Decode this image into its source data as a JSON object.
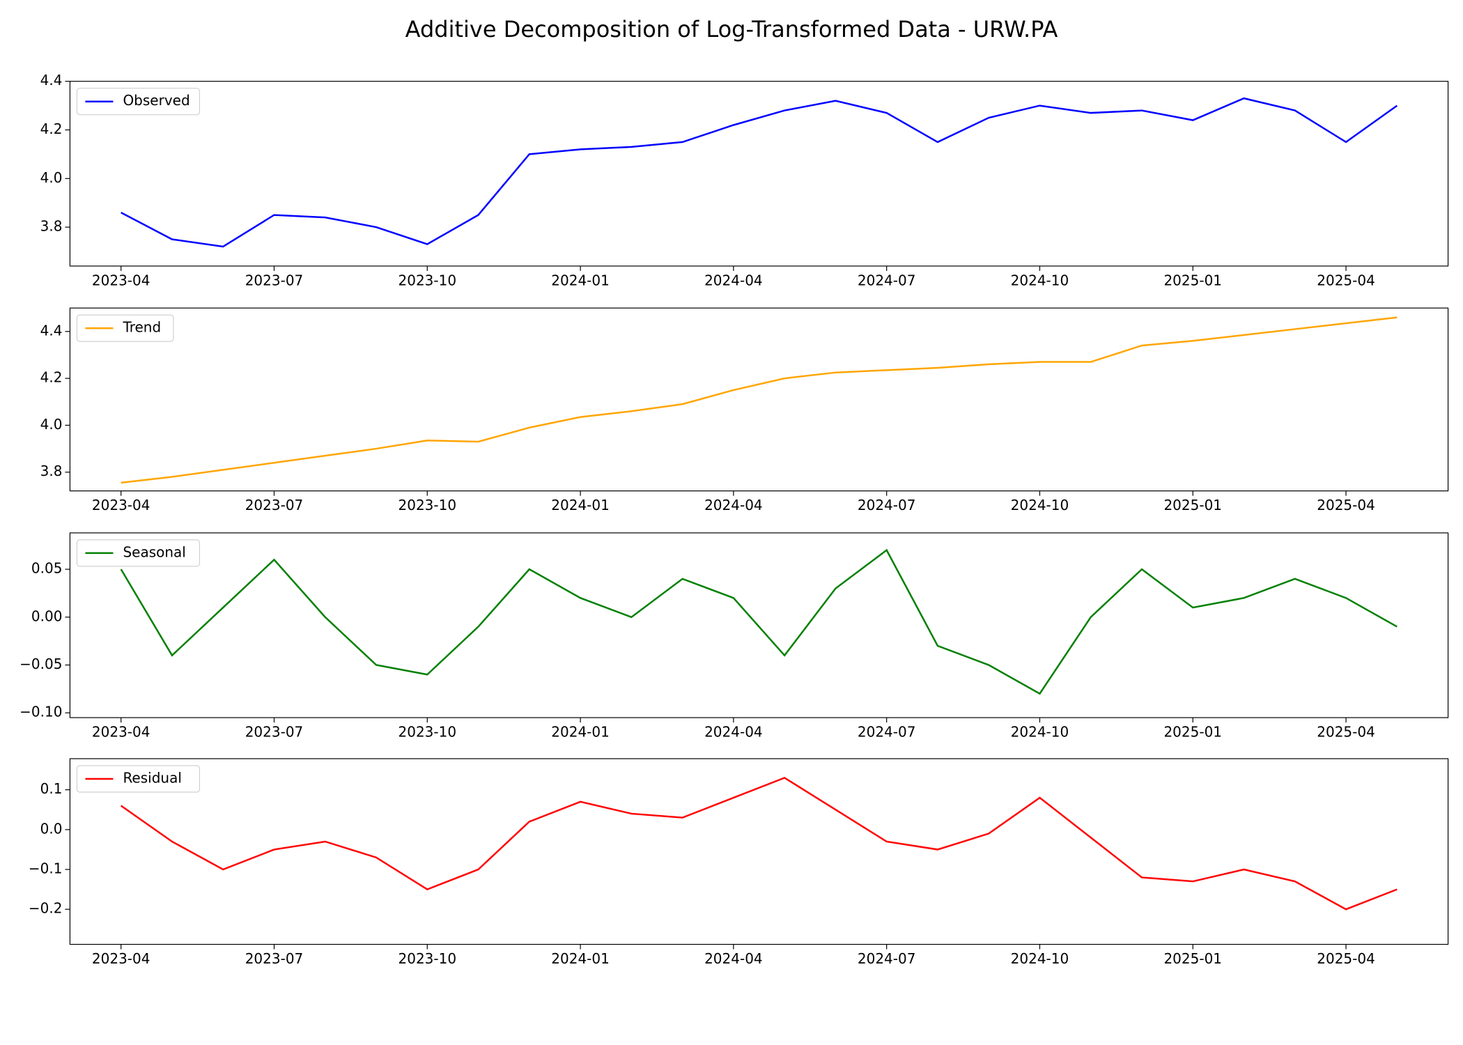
{
  "title": "Additive Decomposition of Log-Transformed Data - URW.PA",
  "chart_data": [
    {
      "type": "line",
      "x": [
        "2023-04",
        "2023-05",
        "2023-06",
        "2023-07",
        "2023-08",
        "2023-09",
        "2023-10",
        "2023-11",
        "2023-12",
        "2024-01",
        "2024-02",
        "2024-03",
        "2024-04",
        "2024-05",
        "2024-06",
        "2024-07",
        "2024-08",
        "2024-09",
        "2024-10",
        "2024-11",
        "2024-12",
        "2025-01",
        "2025-02",
        "2025-03",
        "2025-04",
        "2025-05"
      ],
      "series": [
        {
          "name": "Observed",
          "color": "blue",
          "values": [
            3.86,
            3.75,
            3.72,
            3.85,
            3.84,
            3.8,
            3.73,
            3.85,
            4.1,
            4.12,
            4.13,
            4.15,
            4.22,
            4.28,
            4.32,
            4.27,
            4.15,
            4.25,
            4.3,
            4.27,
            4.28,
            4.24,
            4.33,
            4.28,
            4.15,
            4.3
          ]
        }
      ],
      "xlim": [
        "2023-03",
        "2025-06"
      ],
      "xticks": [
        "2023-04",
        "2023-07",
        "2023-10",
        "2024-01",
        "2024-04",
        "2024-07",
        "2024-10",
        "2025-01",
        "2025-04"
      ],
      "ylim": [
        3.64,
        4.4
      ],
      "yticks": [
        3.8,
        {
          "value": 4,
          "label": "4.0"
        },
        4.2,
        4.4
      ],
      "legend": "upper left"
    },
    {
      "type": "line",
      "x": [
        "2023-04",
        "2023-05",
        "2023-06",
        "2023-07",
        "2023-08",
        "2023-09",
        "2023-10",
        "2023-11",
        "2023-12",
        "2024-01",
        "2024-02",
        "2024-03",
        "2024-04",
        "2024-05",
        "2024-06",
        "2024-07",
        "2024-08",
        "2024-09",
        "2024-10",
        "2024-11",
        "2024-12",
        "2025-01",
        "2025-02",
        "2025-03",
        "2025-04",
        "2025-05"
      ],
      "series": [
        {
          "name": "Trend",
          "color": "orange",
          "values": [
            3.755,
            3.78,
            3.81,
            3.84,
            3.87,
            3.9,
            3.935,
            3.93,
            3.99,
            4.035,
            4.06,
            4.09,
            4.15,
            4.2,
            4.225,
            4.235,
            4.245,
            4.26,
            4.27,
            4.27,
            4.34,
            4.36,
            4.385,
            4.41,
            4.435,
            4.46
          ]
        }
      ],
      "xlim": [
        "2023-03",
        "2025-06"
      ],
      "xticks": [
        "2023-04",
        "2023-07",
        "2023-10",
        "2024-01",
        "2024-04",
        "2024-07",
        "2024-10",
        "2025-01",
        "2025-04"
      ],
      "ylim": [
        3.72,
        4.5
      ],
      "yticks": [
        3.8,
        {
          "value": 4,
          "label": "4.0"
        },
        4.2,
        4.4
      ],
      "legend": "upper left"
    },
    {
      "type": "line",
      "x": [
        "2023-04",
        "2023-05",
        "2023-06",
        "2023-07",
        "2023-08",
        "2023-09",
        "2023-10",
        "2023-11",
        "2023-12",
        "2024-01",
        "2024-02",
        "2024-03",
        "2024-04",
        "2024-05",
        "2024-06",
        "2024-07",
        "2024-08",
        "2024-09",
        "2024-10",
        "2024-11",
        "2024-12",
        "2025-01",
        "2025-02",
        "2025-03",
        "2025-04",
        "2025-05"
      ],
      "series": [
        {
          "name": "Seasonal",
          "color": "green",
          "values": [
            0.05,
            -0.04,
            0.01,
            0.06,
            0.0,
            -0.05,
            -0.06,
            -0.01,
            0.05,
            0.02,
            0.0,
            0.04,
            0.02,
            -0.04,
            0.03,
            0.07,
            -0.03,
            -0.05,
            -0.08,
            0.0,
            0.05,
            0.01,
            0.02,
            0.04,
            0.02,
            -0.01
          ]
        }
      ],
      "xlim": [
        "2023-03",
        "2025-06"
      ],
      "xticks": [
        "2023-04",
        "2023-07",
        "2023-10",
        "2024-01",
        "2024-04",
        "2024-07",
        "2024-10",
        "2025-01",
        "2025-04"
      ],
      "ylim": [
        -0.105,
        0.088
      ],
      "yticks": [
        {
          "value": -0.1,
          "label": "−0.10"
        },
        {
          "value": -0.05,
          "label": "−0.05"
        },
        {
          "value": 0,
          "label": "0.00"
        },
        0.05
      ],
      "legend": "upper left"
    },
    {
      "type": "line",
      "x": [
        "2023-04",
        "2023-05",
        "2023-06",
        "2023-07",
        "2023-08",
        "2023-09",
        "2023-10",
        "2023-11",
        "2023-12",
        "2024-01",
        "2024-02",
        "2024-03",
        "2024-04",
        "2024-05",
        "2024-06",
        "2024-07",
        "2024-08",
        "2024-09",
        "2024-10",
        "2024-11",
        "2024-12",
        "2025-01",
        "2025-02",
        "2025-03",
        "2025-04",
        "2025-05"
      ],
      "series": [
        {
          "name": "Residual",
          "color": "red",
          "values": [
            0.06,
            -0.03,
            -0.1,
            -0.05,
            -0.03,
            -0.07,
            -0.15,
            -0.1,
            0.02,
            0.07,
            0.04,
            0.03,
            0.08,
            0.13,
            0.05,
            -0.03,
            -0.05,
            -0.01,
            0.08,
            -0.02,
            -0.12,
            -0.13,
            -0.1,
            -0.13,
            -0.2,
            -0.15
          ]
        }
      ],
      "xlim": [
        "2023-03",
        "2025-06"
      ],
      "xticks": [
        "2023-04",
        "2023-07",
        "2023-10",
        "2024-01",
        "2024-04",
        "2024-07",
        "2024-10",
        "2025-01",
        "2025-04"
      ],
      "ylim": [
        -0.288,
        0.178
      ],
      "yticks": [
        {
          "value": -0.2,
          "label": "−0.2"
        },
        {
          "value": -0.1,
          "label": "−0.1"
        },
        {
          "value": 0,
          "label": "0.0"
        },
        0.1
      ],
      "legend": "upper left"
    }
  ]
}
